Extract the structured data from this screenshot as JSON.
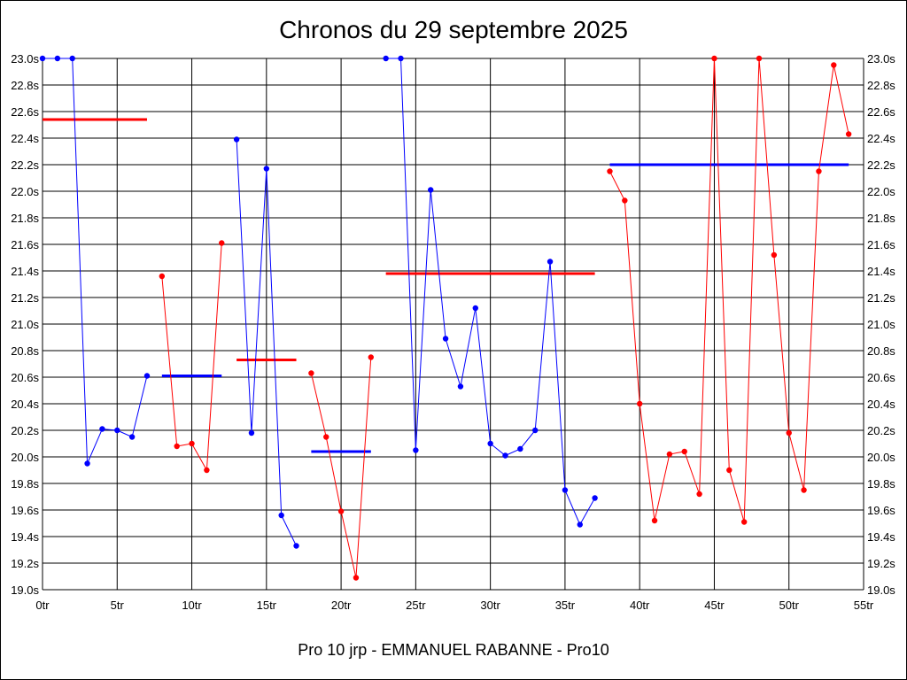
{
  "chart_data": {
    "type": "line",
    "title": "Chronos du 29 septembre 2025",
    "subtitle": "Pro 10 jrp - EMMANUEL RABANNE - Pro10",
    "xlim": [
      0,
      55
    ],
    "ylim": [
      19.0,
      23.0
    ],
    "x_ticks": [
      0,
      5,
      10,
      15,
      20,
      25,
      30,
      35,
      40,
      45,
      50,
      55
    ],
    "x_tick_labels": [
      "0tr",
      "5tr",
      "10tr",
      "15tr",
      "20tr",
      "25tr",
      "30tr",
      "35tr",
      "40tr",
      "45tr",
      "50tr",
      "55tr"
    ],
    "y_ticks": [
      19.0,
      19.2,
      19.4,
      19.6,
      19.8,
      20.0,
      20.2,
      20.4,
      20.6,
      20.8,
      21.0,
      21.2,
      21.4,
      21.6,
      21.8,
      22.0,
      22.2,
      22.4,
      22.6,
      22.8,
      23.0
    ],
    "y_tick_labels": [
      "19.0s",
      "19.2s",
      "19.4s",
      "19.6s",
      "19.8s",
      "20.0s",
      "20.2s",
      "20.4s",
      "20.6s",
      "20.8s",
      "21.0s",
      "21.2s",
      "21.4s",
      "21.6s",
      "21.8s",
      "22.0s",
      "22.2s",
      "22.4s",
      "22.6s",
      "22.8s",
      "23.0s"
    ],
    "grid": true,
    "series": [
      {
        "color": "#0000ff",
        "x": [
          0,
          1,
          2,
          3,
          4,
          5,
          6,
          7
        ],
        "y": [
          23.0,
          23.0,
          23.0,
          19.95,
          20.21,
          20.2,
          20.15,
          20.61
        ]
      },
      {
        "color": "#ff0000",
        "x": [
          8,
          9,
          10,
          11,
          12
        ],
        "y": [
          21.36,
          20.08,
          20.1,
          19.9,
          21.61
        ]
      },
      {
        "color": "#0000ff",
        "x": [
          13,
          14,
          15,
          16,
          17
        ],
        "y": [
          22.39,
          20.18,
          22.17,
          19.56,
          19.33
        ]
      },
      {
        "color": "#ff0000",
        "x": [
          18,
          19,
          20,
          21,
          22
        ],
        "y": [
          20.63,
          20.15,
          19.59,
          19.09,
          20.75
        ]
      },
      {
        "color": "#0000ff",
        "x": [
          23,
          24,
          25,
          26,
          27,
          28,
          29,
          30,
          31,
          32,
          33,
          34,
          35,
          36,
          37
        ],
        "y": [
          23.0,
          23.0,
          20.05,
          22.01,
          20.89,
          20.53,
          21.12,
          20.1,
          20.01,
          20.06,
          20.2,
          21.47,
          19.75,
          19.49,
          19.69
        ]
      },
      {
        "color": "#ff0000",
        "x": [
          38,
          39,
          40,
          41,
          42,
          43,
          44,
          45,
          46,
          47,
          48,
          49,
          50,
          51,
          52,
          53,
          54
        ],
        "y": [
          22.15,
          21.93,
          20.4,
          19.52,
          20.02,
          20.04,
          19.72,
          23.0,
          19.9,
          19.51,
          23.0,
          21.52,
          20.18,
          19.75,
          22.15,
          22.95,
          22.43
        ]
      }
    ],
    "averages": [
      {
        "color": "#ff0000",
        "x": [
          0,
          7
        ],
        "y": 22.54
      },
      {
        "color": "#0000ff",
        "x": [
          8,
          12
        ],
        "y": 20.61
      },
      {
        "color": "#ff0000",
        "x": [
          13,
          17
        ],
        "y": 20.73
      },
      {
        "color": "#0000ff",
        "x": [
          18,
          22
        ],
        "y": 20.04
      },
      {
        "color": "#ff0000",
        "x": [
          23,
          37
        ],
        "y": 21.38
      },
      {
        "color": "#0000ff",
        "x": [
          38,
          54
        ],
        "y": 22.2
      }
    ]
  }
}
